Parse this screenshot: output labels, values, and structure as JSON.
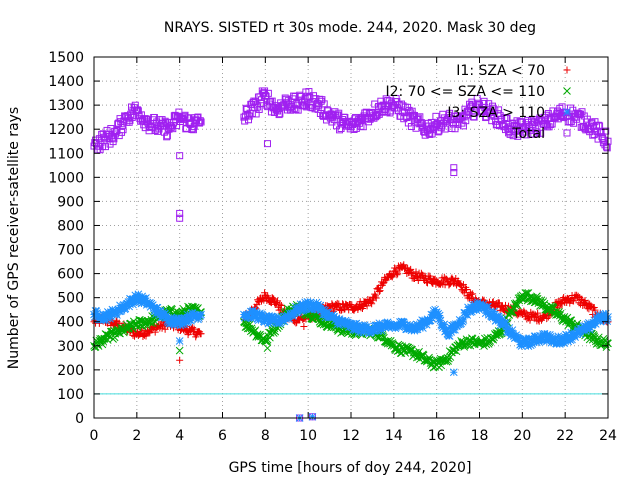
{
  "chart_data": {
    "type": "scatter",
    "title": "NRAYS. SISTED rt 30s mode. 244, 2020. Mask 30 deg",
    "xlabel": "GPS time [hours of doy 244, 2020]",
    "ylabel": "Number of GPS receiver-satellite rays",
    "xlim": [
      0,
      24
    ],
    "ylim": [
      0,
      1500
    ],
    "xticks": [
      "0",
      "2",
      "4",
      "6",
      "8",
      "10",
      "12",
      "14",
      "16",
      "18",
      "20",
      "22",
      "24"
    ],
    "yticks": [
      "0",
      "100",
      "200",
      "300",
      "400",
      "500",
      "600",
      "700",
      "800",
      "900",
      "1000",
      "1100",
      "1200",
      "1300",
      "1400",
      "1500"
    ],
    "grid": true,
    "threshold": {
      "value": 100,
      "color": "#44dddd"
    },
    "series": [
      {
        "name": "I1: SZA < 70",
        "marker": "plus",
        "color": "#ee0000",
        "x": [
          0,
          0.5,
          1,
          1.5,
          2,
          2.5,
          3,
          3.5,
          4,
          4.5,
          5,
          7,
          7.5,
          8,
          8.5,
          9,
          9.5,
          10,
          10.5,
          11,
          11.5,
          12,
          12.5,
          13,
          13.5,
          14,
          14.5,
          15,
          15.5,
          16,
          16.5,
          17,
          17.5,
          18,
          18.5,
          19,
          19.5,
          20,
          20.5,
          21,
          21.5,
          22,
          22.5,
          23,
          23.5,
          24
        ],
        "y": [
          400,
          410,
          390,
          370,
          350,
          360,
          380,
          390,
          380,
          360,
          350,
          410,
          460,
          510,
          480,
          420,
          410,
          420,
          440,
          460,
          460,
          460,
          470,
          490,
          560,
          610,
          620,
          590,
          580,
          570,
          570,
          570,
          510,
          480,
          470,
          460,
          450,
          430,
          420,
          420,
          460,
          490,
          500,
          470,
          430,
          400
        ]
      },
      {
        "name": "I2: 70 <= SZA <= 110",
        "marker": "cross",
        "color": "#00aa00",
        "x": [
          0,
          0.5,
          1,
          1.5,
          2,
          2.5,
          3,
          3.5,
          4,
          4.5,
          5,
          7,
          7.5,
          8,
          8.5,
          9,
          9.5,
          10,
          10.5,
          11,
          11.5,
          12,
          12.5,
          13,
          13.5,
          14,
          14.5,
          15,
          15.5,
          16,
          16.5,
          17,
          17.5,
          18,
          18.5,
          19,
          19.5,
          20,
          20.5,
          21,
          21.5,
          22,
          22.5,
          23,
          23.5,
          24
        ],
        "y": [
          300,
          330,
          350,
          370,
          390,
          400,
          420,
          440,
          430,
          450,
          440,
          400,
          360,
          320,
          380,
          440,
          460,
          440,
          410,
          390,
          370,
          360,
          360,
          360,
          340,
          300,
          280,
          270,
          240,
          220,
          250,
          300,
          320,
          310,
          320,
          360,
          440,
          510,
          500,
          470,
          440,
          410,
          380,
          350,
          320,
          310
        ]
      },
      {
        "name": "I3: SZA > 110",
        "marker": "star",
        "color": "#1e90ff",
        "x": [
          0,
          0.5,
          1,
          1.5,
          2,
          2.5,
          3,
          3.5,
          4,
          4.5,
          5,
          7,
          7.5,
          8,
          8.5,
          9,
          9.5,
          10,
          10.5,
          11,
          11.5,
          12,
          12.5,
          13,
          13.5,
          14,
          14.5,
          15,
          15.5,
          16,
          16.5,
          17,
          17.5,
          18,
          18.5,
          19,
          19.5,
          20,
          20.5,
          21,
          21.5,
          22,
          22.5,
          23,
          23.5,
          24
        ],
        "y": [
          430,
          420,
          440,
          470,
          500,
          480,
          440,
          410,
          400,
          420,
          430,
          430,
          430,
          410,
          400,
          420,
          450,
          470,
          460,
          420,
          400,
          380,
          370,
          370,
          380,
          380,
          390,
          370,
          400,
          440,
          350,
          390,
          450,
          470,
          440,
          400,
          350,
          310,
          320,
          340,
          320,
          330,
          350,
          370,
          410,
          420
        ]
      },
      {
        "name": "Total",
        "marker": "square",
        "color": "#a020f0",
        "x": [
          0,
          0.5,
          1,
          1.5,
          2,
          2.5,
          3,
          3.5,
          4,
          4.5,
          5,
          7,
          7.5,
          8,
          8.5,
          9,
          9.5,
          10,
          10.5,
          11,
          11.5,
          12,
          12.5,
          13,
          13.5,
          14,
          14.5,
          15,
          15.5,
          16,
          16.5,
          17,
          17.5,
          18,
          18.5,
          19,
          19.5,
          20,
          20.5,
          21,
          21.5,
          22,
          22.5,
          23,
          23.5,
          24
        ],
        "y": [
          1130,
          1160,
          1180,
          1250,
          1280,
          1230,
          1210,
          1200,
          1250,
          1220,
          1230,
          1250,
          1290,
          1340,
          1280,
          1310,
          1300,
          1330,
          1300,
          1260,
          1230,
          1210,
          1240,
          1270,
          1300,
          1300,
          1270,
          1230,
          1200,
          1220,
          1240,
          1220,
          1270,
          1300,
          1270,
          1240,
          1200,
          1200,
          1210,
          1220,
          1250,
          1270,
          1250,
          1230,
          1190,
          1150
        ]
      }
    ],
    "outliers": [
      {
        "series": "Total",
        "x": 4,
        "y": 1090
      },
      {
        "series": "Total",
        "x": 4,
        "y": 850
      },
      {
        "series": "Total",
        "x": 4,
        "y": 830
      },
      {
        "series": "Total",
        "x": 8.1,
        "y": 1140
      },
      {
        "series": "Total",
        "x": 16.8,
        "y": 1040
      },
      {
        "series": "Total",
        "x": 16.8,
        "y": 1020
      },
      {
        "series": "Total",
        "x": 9.6,
        "y": 0
      },
      {
        "series": "Total",
        "x": 10.2,
        "y": 5
      },
      {
        "series": "I1: SZA < 70",
        "x": 4,
        "y": 240
      },
      {
        "series": "I1: SZA < 70",
        "x": 9.8,
        "y": 380
      },
      {
        "series": "I2: 70 <= SZA <= 110",
        "x": 4,
        "y": 280
      },
      {
        "series": "I2: 70 <= SZA <= 110",
        "x": 8.1,
        "y": 290
      },
      {
        "series": "I3: SZA > 110",
        "x": 4,
        "y": 320
      },
      {
        "series": "I3: SZA > 110",
        "x": 16.8,
        "y": 190
      },
      {
        "series": "I3: SZA > 110",
        "x": 9.6,
        "y": 0
      },
      {
        "series": "I3: SZA > 110",
        "x": 10.2,
        "y": 5
      }
    ]
  }
}
